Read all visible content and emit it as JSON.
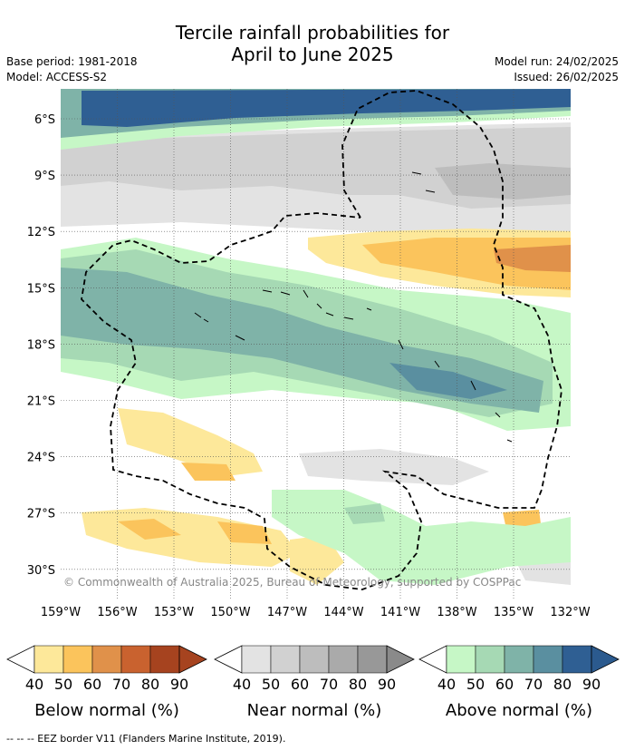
{
  "title_line1": "Tercile rainfall probabilities for",
  "title_line2": "April to June 2025",
  "base_period": "Base period: 1981-2018",
  "model": "Model: ACCESS-S2",
  "model_run": "Model run: 24/02/2025",
  "issued": "Issued: 26/02/2025",
  "copyright": "© Commonwealth of Australia 2025, Bureau of Meteorology, supported by COSPPac",
  "footer": "-- -- -- EEZ border V11 (Flanders Marine Institute, 2019).",
  "lat_labels": [
    "6°S",
    "9°S",
    "12°S",
    "15°S",
    "18°S",
    "21°S",
    "24°S",
    "27°S",
    "30°S"
  ],
  "lon_labels": [
    "159°W",
    "156°W",
    "153°W",
    "150°W",
    "147°W",
    "144°W",
    "141°W",
    "138°W",
    "135°W",
    "132°W"
  ],
  "colorbars": [
    {
      "label": "Below normal (%)",
      "ticks": [
        "40",
        "50",
        "60",
        "70",
        "80",
        "90"
      ],
      "colors": [
        "#fde89a",
        "#fbc45c",
        "#e0914a",
        "#c9622f",
        "#a6431f",
        "#a6431f"
      ]
    },
    {
      "label": "Near normal (%)",
      "ticks": [
        "40",
        "50",
        "60",
        "70",
        "80",
        "90"
      ],
      "colors": [
        "#e3e3e3",
        "#d1d1d1",
        "#bdbdbd",
        "#aaaaaa",
        "#989898",
        "#8a8a8a"
      ]
    },
    {
      "label": "Above normal (%)",
      "ticks": [
        "40",
        "50",
        "60",
        "70",
        "80",
        "90"
      ],
      "colors": [
        "#c6f7c6",
        "#a6d9b4",
        "#7fb3a8",
        "#5a8fa0",
        "#2f5f93",
        "#2b5a8e"
      ]
    }
  ],
  "colors": {
    "below_40": "#fde89a",
    "below_60": "#fbc45c",
    "below_70": "#e0914a",
    "near_40": "#e3e3e3",
    "near_50": "#d1d1d1",
    "near_60": "#bdbdbd",
    "above_40": "#c6f7c6",
    "above_50": "#a6d9b4",
    "above_60": "#7fb3a8",
    "above_70": "#5a8fa0",
    "above_80": "#2f5f93"
  }
}
